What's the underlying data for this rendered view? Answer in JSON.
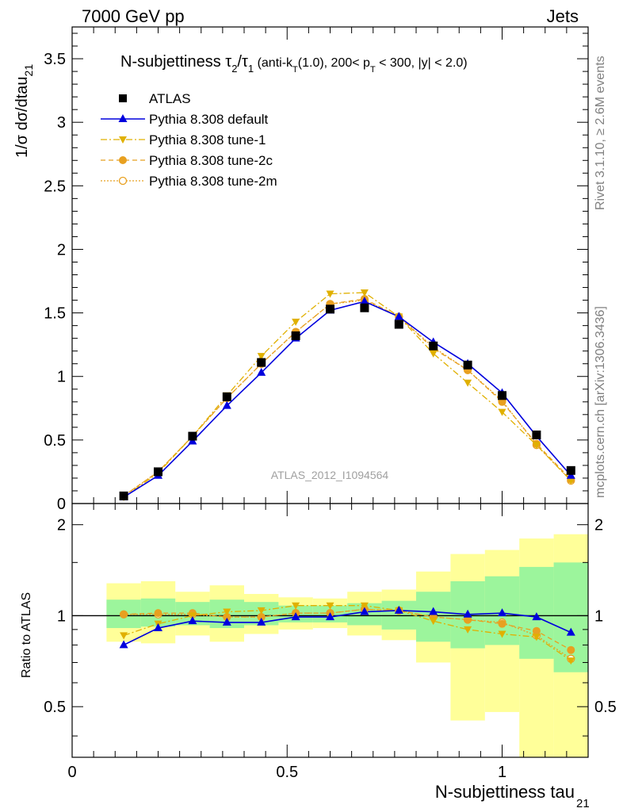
{
  "header": {
    "left": "7000 GeV pp",
    "right": "Jets"
  },
  "side_labels": {
    "rivet": "Rivet 3.1.10, ≥ 2.6M events",
    "mcplots": "mcplots.cern.ch [arXiv:1306.3436]"
  },
  "watermark": "ATLAS_2012_I1094564",
  "title": {
    "main": "N-subjettiness τ",
    "sub1": "2",
    "mid": "/τ",
    "sub2": "1",
    "cond1": " (anti-k",
    "cond_sub_t": "T",
    "cond2": "(1.0), 200< p",
    "cond3": " < 300, |y| < 2.0)"
  },
  "y_axis_label": "1/σ dσ/dtau",
  "y_axis_label_sub": "21",
  "ratio_y_label": "Ratio to ATLAS",
  "x_axis_label": "N-subjettiness tau",
  "x_axis_label_sub": "21",
  "legend": [
    {
      "label": "ATLAS",
      "color": "#000000",
      "marker": "square",
      "line": "none"
    },
    {
      "label": "Pythia 8.308 default",
      "color": "#0000dd",
      "marker": "triangle-up",
      "line": "solid"
    },
    {
      "label": "Pythia 8.308 tune-1",
      "color": "#e0b000",
      "marker": "triangle-down",
      "line": "dashdot"
    },
    {
      "label": "Pythia 8.308 tune-2c",
      "color": "#e8a020",
      "marker": "circle",
      "line": "dashed"
    },
    {
      "label": "Pythia 8.308 tune-2m",
      "color": "#e8a020",
      "marker": "circle-open",
      "line": "dotted"
    }
  ],
  "chart_data": [
    {
      "type": "line",
      "panel": "main",
      "xlim": [
        0,
        1.2
      ],
      "ylim": [
        0,
        3.75
      ],
      "x_ticks": [
        "0",
        "0.5",
        "1"
      ],
      "y_ticks": [
        "0",
        "0.5",
        "1",
        "1.5",
        "2",
        "2.5",
        "3",
        "3.5"
      ],
      "x": [
        0.12,
        0.2,
        0.28,
        0.36,
        0.44,
        0.52,
        0.6,
        0.68,
        0.76,
        0.84,
        0.92,
        1.0,
        1.08,
        1.16
      ],
      "series": [
        {
          "name": "ATLAS",
          "values": [
            0.06,
            0.25,
            0.53,
            0.84,
            1.11,
            1.32,
            1.53,
            1.54,
            1.41,
            1.24,
            1.09,
            0.85,
            0.54,
            0.26
          ]
        },
        {
          "name": "Pythia 8.308 default",
          "values": [
            0.05,
            0.22,
            0.49,
            0.77,
            1.03,
            1.3,
            1.52,
            1.59,
            1.47,
            1.27,
            1.1,
            0.87,
            0.53,
            0.22
          ]
        },
        {
          "name": "Pythia 8.308 tune-1",
          "values": [
            0.05,
            0.24,
            0.53,
            0.85,
            1.16,
            1.43,
            1.65,
            1.66,
            1.47,
            1.18,
            0.95,
            0.72,
            0.46,
            0.18
          ]
        },
        {
          "name": "Pythia 8.308 tune-2c",
          "values": [
            0.06,
            0.25,
            0.53,
            0.83,
            1.1,
            1.35,
            1.57,
            1.61,
            1.47,
            1.22,
            1.05,
            0.8,
            0.47,
            0.19
          ]
        },
        {
          "name": "Pythia 8.308 tune-2m",
          "values": [
            0.06,
            0.25,
            0.53,
            0.83,
            1.1,
            1.35,
            1.57,
            1.6,
            1.47,
            1.23,
            1.05,
            0.81,
            0.46,
            0.18
          ]
        }
      ]
    },
    {
      "type": "line",
      "panel": "ratio",
      "xlim": [
        0,
        1.2
      ],
      "ylim": [
        0.34,
        2.35
      ],
      "y_scale": "log",
      "y_ticks": [
        "0.5",
        "1",
        "2"
      ],
      "x_ticks": [
        "0",
        "0.5",
        "1"
      ],
      "x": [
        0.12,
        0.2,
        0.28,
        0.36,
        0.44,
        0.52,
        0.6,
        0.68,
        0.76,
        0.84,
        0.92,
        1.0,
        1.08,
        1.16
      ],
      "bin_edges": [
        0.08,
        0.16,
        0.24,
        0.32,
        0.4,
        0.48,
        0.56,
        0.64,
        0.72,
        0.8,
        0.88,
        0.96,
        1.04,
        1.12,
        1.2
      ],
      "band_green": [
        [
          0.91,
          1.13
        ],
        [
          0.92,
          1.14
        ],
        [
          0.93,
          1.11
        ],
        [
          0.91,
          1.13
        ],
        [
          0.93,
          1.11
        ],
        [
          0.95,
          1.08
        ],
        [
          0.95,
          1.08
        ],
        [
          0.93,
          1.1
        ],
        [
          0.9,
          1.12
        ],
        [
          0.82,
          1.2
        ],
        [
          0.78,
          1.3
        ],
        [
          0.8,
          1.35
        ],
        [
          0.72,
          1.45
        ],
        [
          0.65,
          1.5
        ]
      ],
      "band_yellow": [
        [
          0.82,
          1.28
        ],
        [
          0.81,
          1.3
        ],
        [
          0.86,
          1.2
        ],
        [
          0.82,
          1.26
        ],
        [
          0.87,
          1.18
        ],
        [
          0.9,
          1.15
        ],
        [
          0.91,
          1.14
        ],
        [
          0.86,
          1.2
        ],
        [
          0.83,
          1.22
        ],
        [
          0.7,
          1.4
        ],
        [
          0.45,
          1.6
        ],
        [
          0.48,
          1.65
        ],
        [
          0.33,
          1.8
        ],
        [
          0.33,
          1.86
        ]
      ],
      "series": [
        {
          "name": "Pythia 8.308 default",
          "values": [
            0.8,
            0.91,
            0.96,
            0.95,
            0.95,
            0.99,
            0.99,
            1.03,
            1.04,
            1.03,
            1.01,
            1.02,
            0.99,
            0.88
          ]
        },
        {
          "name": "Pythia 8.308 tune-1",
          "values": [
            0.86,
            0.94,
            1.0,
            1.03,
            1.04,
            1.08,
            1.08,
            1.08,
            1.04,
            0.96,
            0.9,
            0.87,
            0.85,
            0.71
          ]
        },
        {
          "name": "Pythia 8.308 tune-2c",
          "values": [
            1.01,
            1.02,
            1.02,
            0.99,
            0.99,
            1.02,
            1.02,
            1.05,
            1.04,
            0.99,
            0.97,
            0.94,
            0.89,
            0.77
          ]
        },
        {
          "name": "Pythia 8.308 tune-2m",
          "values": [
            1.01,
            1.01,
            1.01,
            0.99,
            0.99,
            1.02,
            1.02,
            1.05,
            1.04,
            0.99,
            0.97,
            0.95,
            0.86,
            0.72
          ]
        }
      ]
    }
  ],
  "colors": {
    "default": "#0000dd",
    "tune1": "#e0b000",
    "tune2c": "#e8a020",
    "tune2m": "#e8a020",
    "band_green": "#9cf59c",
    "band_yellow": "#ffff99",
    "watermark": "#a0a0a0"
  }
}
